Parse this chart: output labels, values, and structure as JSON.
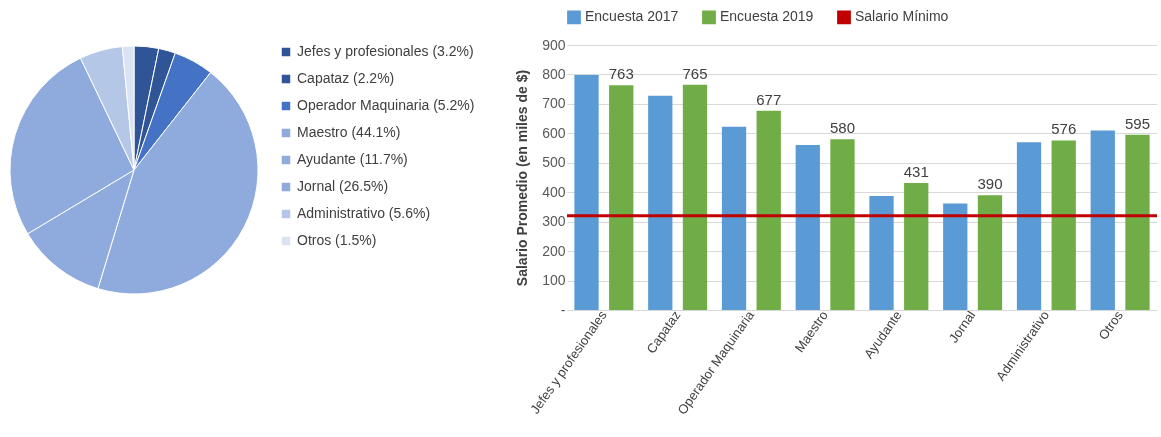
{
  "chart_data": [
    {
      "type": "pie",
      "categories": [
        "Jefes y profesionales (3.2%)",
        "Capataz (2.2%)",
        "Operador Maquinaria (5.2%)",
        "Maestro (44.1%)",
        "Ayudante (11.7%)",
        "Jornal (26.5%)",
        "Administrativo (5.6%)",
        "Otros (1.5%)"
      ],
      "values": [
        3.2,
        2.2,
        5.2,
        44.1,
        11.7,
        26.5,
        5.6,
        1.5
      ],
      "colors": [
        "#2f5597",
        "#2f5597",
        "#4472c4",
        "#8faadc",
        "#8faadc",
        "#8faadc",
        "#b4c7e7",
        "#dae3f3"
      ],
      "legend": "right"
    },
    {
      "type": "bar",
      "categories": [
        "Jefes y profesionales",
        "Capataz",
        "Operador Maquinaria",
        "Maestro",
        "Ayudante",
        "Jornal",
        "Administrativo",
        "Otros"
      ],
      "ylabel": "Salario Promedio (en miles de $)",
      "ylim": [
        0,
        900
      ],
      "yticks": [
        {
          "value": 0,
          "label": "-"
        },
        100,
        200,
        300,
        400,
        500,
        600,
        700,
        800,
        900
      ],
      "grid": "y",
      "legend": "top",
      "series": [
        {
          "name": "Encuesta 2017",
          "color": "#5b9bd5",
          "values": [
            798,
            728,
            622,
            560,
            387,
            362,
            570,
            610
          ]
        },
        {
          "name": "Encuesta 2019",
          "color": "#70ad47",
          "values": [
            763,
            765,
            677,
            580,
            431,
            390,
            576,
            595
          ],
          "value_labels": [
            "763",
            "765",
            "677",
            "580",
            "431",
            "390",
            "576",
            "595"
          ]
        }
      ],
      "ref_lines": [
        {
          "axis": "y",
          "value": 320,
          "label": "Salario Mínimo",
          "color": "#c00000"
        }
      ]
    }
  ]
}
